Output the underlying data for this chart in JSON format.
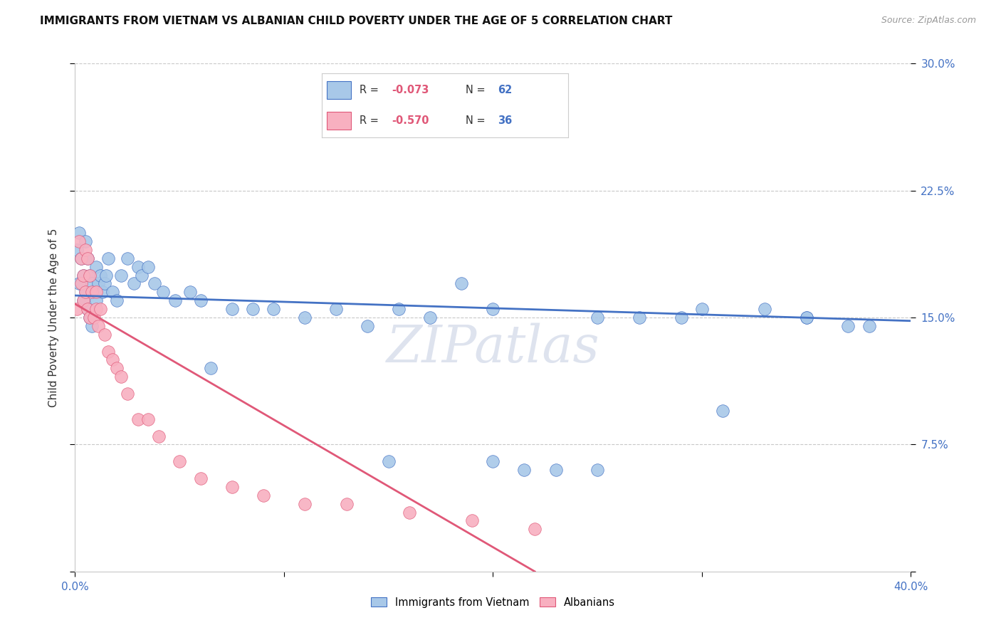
{
  "title": "IMMIGRANTS FROM VIETNAM VS ALBANIAN CHILD POVERTY UNDER THE AGE OF 5 CORRELATION CHART",
  "source": "Source: ZipAtlas.com",
  "ylabel": "Child Poverty Under the Age of 5",
  "xlim": [
    0.0,
    0.4
  ],
  "ylim": [
    0.0,
    0.3
  ],
  "xticks": [
    0.0,
    0.1,
    0.2,
    0.3,
    0.4
  ],
  "xtick_labels": [
    "0.0%",
    "",
    "",
    "",
    "40.0%"
  ],
  "ytick_labels_right": [
    "30.0%",
    "22.5%",
    "15.0%",
    "7.5%",
    ""
  ],
  "yticks": [
    0.3,
    0.225,
    0.15,
    0.075,
    0.0
  ],
  "watermark": "ZIPatlas",
  "blue_color": "#a8c8e8",
  "pink_color": "#f8b0c0",
  "line_blue": "#4472c4",
  "line_pink": "#e05878",
  "tick_color": "#4472c4",
  "grid_color": "#c8c8c8",
  "vietnam_x": [
    0.001,
    0.002,
    0.002,
    0.003,
    0.004,
    0.004,
    0.005,
    0.005,
    0.006,
    0.006,
    0.007,
    0.007,
    0.008,
    0.008,
    0.009,
    0.01,
    0.01,
    0.011,
    0.012,
    0.013,
    0.014,
    0.015,
    0.016,
    0.018,
    0.02,
    0.022,
    0.025,
    0.028,
    0.03,
    0.032,
    0.035,
    0.038,
    0.042,
    0.048,
    0.055,
    0.06,
    0.065,
    0.075,
    0.085,
    0.095,
    0.11,
    0.125,
    0.14,
    0.155,
    0.17,
    0.185,
    0.2,
    0.215,
    0.23,
    0.25,
    0.27,
    0.29,
    0.31,
    0.33,
    0.35,
    0.37,
    0.15,
    0.2,
    0.25,
    0.3,
    0.35,
    0.38
  ],
  "vietnam_y": [
    0.19,
    0.17,
    0.2,
    0.185,
    0.175,
    0.16,
    0.195,
    0.165,
    0.185,
    0.155,
    0.175,
    0.15,
    0.17,
    0.145,
    0.165,
    0.16,
    0.18,
    0.17,
    0.175,
    0.165,
    0.17,
    0.175,
    0.185,
    0.165,
    0.16,
    0.175,
    0.185,
    0.17,
    0.18,
    0.175,
    0.18,
    0.17,
    0.165,
    0.16,
    0.165,
    0.16,
    0.12,
    0.155,
    0.155,
    0.155,
    0.15,
    0.155,
    0.145,
    0.155,
    0.15,
    0.17,
    0.155,
    0.06,
    0.06,
    0.15,
    0.15,
    0.15,
    0.095,
    0.155,
    0.15,
    0.145,
    0.065,
    0.065,
    0.06,
    0.155,
    0.15,
    0.145
  ],
  "albanian_x": [
    0.001,
    0.002,
    0.003,
    0.003,
    0.004,
    0.004,
    0.005,
    0.005,
    0.006,
    0.006,
    0.007,
    0.007,
    0.008,
    0.009,
    0.01,
    0.01,
    0.011,
    0.012,
    0.014,
    0.016,
    0.018,
    0.02,
    0.022,
    0.025,
    0.03,
    0.035,
    0.04,
    0.05,
    0.06,
    0.075,
    0.09,
    0.11,
    0.13,
    0.16,
    0.19,
    0.22
  ],
  "albanian_y": [
    0.155,
    0.195,
    0.185,
    0.17,
    0.175,
    0.16,
    0.19,
    0.165,
    0.185,
    0.155,
    0.175,
    0.15,
    0.165,
    0.15,
    0.165,
    0.155,
    0.145,
    0.155,
    0.14,
    0.13,
    0.125,
    0.12,
    0.115,
    0.105,
    0.09,
    0.09,
    0.08,
    0.065,
    0.055,
    0.05,
    0.045,
    0.04,
    0.04,
    0.035,
    0.03,
    0.025
  ],
  "vietnam_line_x": [
    0.0,
    0.4
  ],
  "vietnam_line_y": [
    0.163,
    0.148
  ],
  "albanian_line_x": [
    0.0,
    0.22
  ],
  "albanian_line_y": [
    0.158,
    0.0
  ]
}
